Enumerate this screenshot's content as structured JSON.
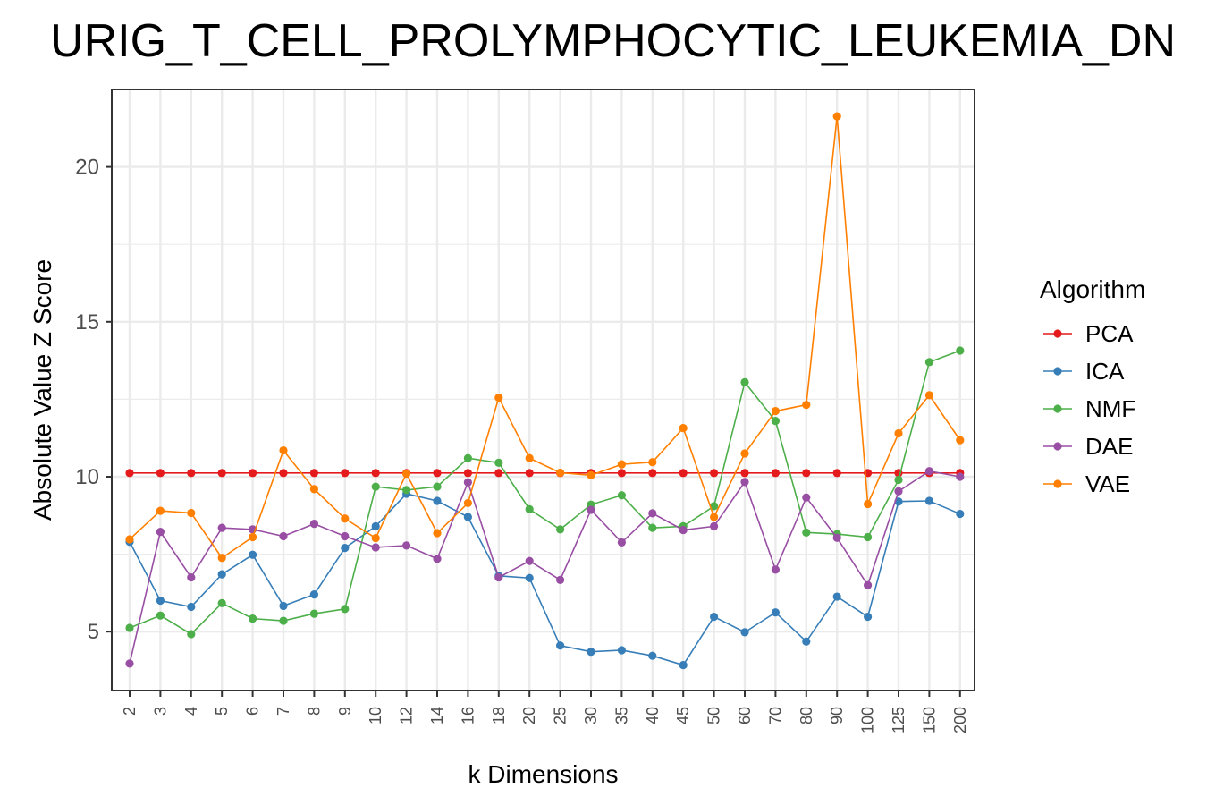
{
  "chart_data": {
    "type": "line",
    "title": "URIG_T_CELL_PROLYMPHOCYTIC_LEUKEMIA_DN",
    "xlabel": "k Dimensions",
    "ylabel": "Absolute Value Z Score",
    "categories": [
      "2",
      "3",
      "4",
      "5",
      "6",
      "7",
      "8",
      "9",
      "10",
      "12",
      "14",
      "16",
      "18",
      "20",
      "25",
      "30",
      "35",
      "40",
      "45",
      "50",
      "60",
      "70",
      "80",
      "90",
      "100",
      "125",
      "150",
      "200"
    ],
    "ylim": [
      3.1,
      22.5
    ],
    "yticks": [
      5,
      10,
      15,
      20
    ],
    "grid": true,
    "legend": {
      "title": "Algorithm",
      "position": "right"
    },
    "series": [
      {
        "name": "PCA",
        "color": "#e41a1c",
        "values": [
          10.12,
          10.12,
          10.12,
          10.12,
          10.12,
          10.12,
          10.12,
          10.12,
          10.12,
          10.12,
          10.12,
          10.12,
          10.12,
          10.12,
          10.12,
          10.12,
          10.12,
          10.12,
          10.12,
          10.12,
          10.12,
          10.12,
          10.12,
          10.12,
          10.12,
          10.12,
          10.12,
          10.12
        ]
      },
      {
        "name": "ICA",
        "color": "#377eb8",
        "values": [
          7.9,
          6.0,
          5.8,
          6.85,
          7.48,
          5.83,
          6.2,
          7.7,
          8.4,
          9.45,
          9.22,
          8.7,
          6.8,
          6.73,
          4.55,
          4.35,
          4.4,
          4.22,
          3.92,
          5.48,
          4.98,
          5.62,
          4.68,
          6.13,
          5.48,
          9.2,
          9.22,
          8.8
        ]
      },
      {
        "name": "NMF",
        "color": "#4daf4a",
        "values": [
          5.12,
          5.52,
          4.92,
          5.92,
          5.42,
          5.35,
          5.58,
          5.73,
          9.68,
          9.57,
          9.68,
          10.6,
          10.45,
          8.95,
          8.3,
          9.1,
          9.4,
          8.35,
          8.4,
          9.05,
          13.05,
          11.8,
          8.2,
          8.15,
          8.05,
          9.9,
          13.7,
          14.07
        ]
      },
      {
        "name": "DAE",
        "color": "#984ea3",
        "values": [
          3.97,
          8.22,
          6.75,
          8.35,
          8.3,
          8.08,
          8.48,
          8.08,
          7.72,
          7.78,
          7.35,
          9.82,
          6.75,
          7.28,
          6.67,
          8.93,
          7.88,
          8.82,
          8.28,
          8.4,
          9.83,
          7.0,
          9.33,
          8.03,
          6.5,
          9.53,
          10.18,
          10.0
        ]
      },
      {
        "name": "VAE",
        "color": "#ff7f00",
        "values": [
          7.98,
          8.9,
          8.83,
          7.38,
          8.05,
          10.85,
          9.6,
          8.65,
          8.02,
          10.1,
          8.18,
          9.15,
          12.55,
          10.6,
          10.13,
          10.05,
          10.4,
          10.47,
          11.57,
          8.7,
          10.75,
          12.12,
          12.32,
          21.63,
          9.12,
          11.4,
          12.63,
          11.18
        ]
      }
    ]
  }
}
